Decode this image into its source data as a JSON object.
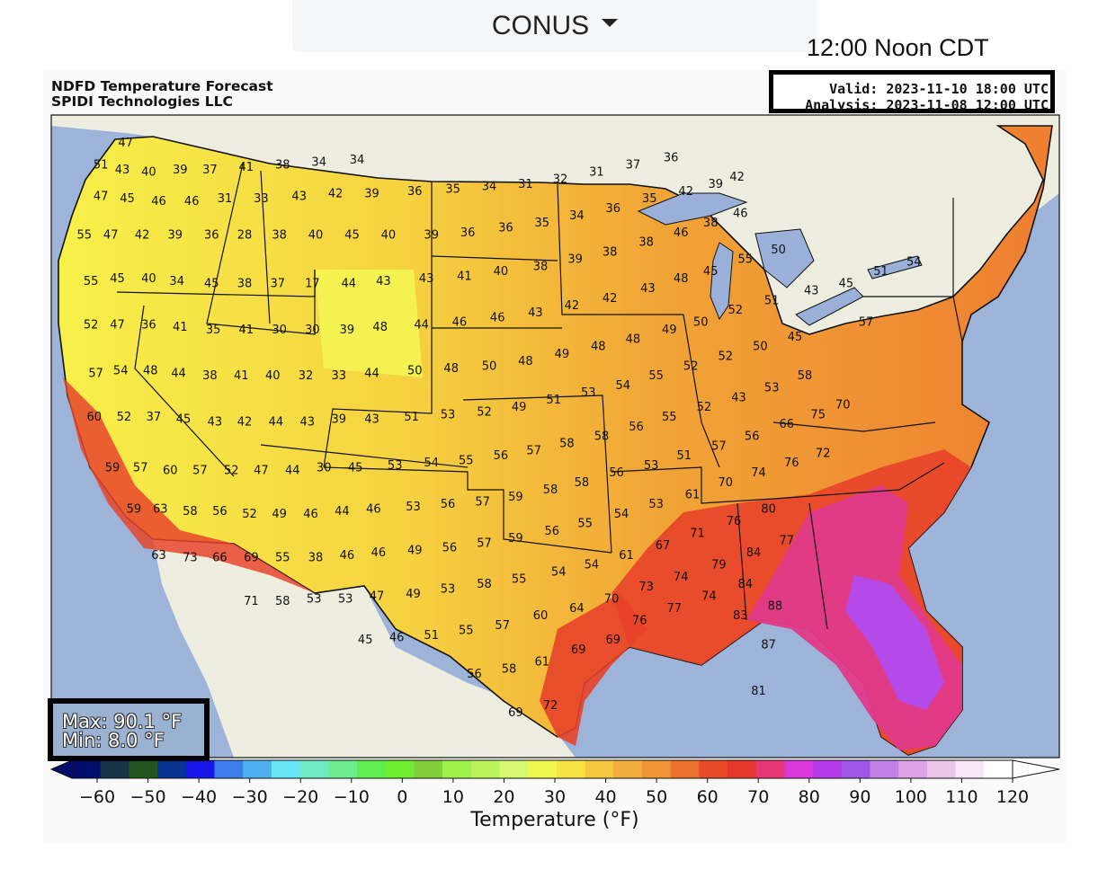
{
  "header": {
    "region_select": "CONUS",
    "local_time": "12:00 Noon CDT"
  },
  "map": {
    "title_line1": "NDFD Temperature Forecast",
    "title_line2": "SPIDI Technologies LLC",
    "valid": "Valid: 2023-11-10 18:00 UTC",
    "analysis": "Analysis: 2023-11-08 12:00 UTC",
    "max": "Max: 90.1 °F",
    "min": "Min: 8.0 °F"
  },
  "colors": {
    "ocean": "#9db3d8",
    "land_outside": "#eeeee0",
    "border": "#111111",
    "lake": "#9ab0d8"
  },
  "temperature_labels": [
    {
      "t": "47",
      "lon": -122.5,
      "lat": 48.7
    },
    {
      "t": "51",
      "lon": -124.0,
      "lat": 47.8
    },
    {
      "t": "43",
      "lon": -122.7,
      "lat": 47.6
    },
    {
      "t": "40",
      "lon": -121.1,
      "lat": 47.5
    },
    {
      "t": "39",
      "lon": -119.2,
      "lat": 47.6
    },
    {
      "t": "37",
      "lon": -117.4,
      "lat": 47.6
    },
    {
      "t": "41",
      "lon": -115.2,
      "lat": 47.7
    },
    {
      "t": "38",
      "lon": -113.0,
      "lat": 47.8
    },
    {
      "t": "34",
      "lon": -110.8,
      "lat": 47.9
    },
    {
      "t": "34",
      "lon": -108.5,
      "lat": 48.0
    },
    {
      "t": "47",
      "lon": -124.0,
      "lat": 46.5
    },
    {
      "t": "45",
      "lon": -122.4,
      "lat": 46.4
    },
    {
      "t": "46",
      "lon": -120.5,
      "lat": 46.3
    },
    {
      "t": "46",
      "lon": -118.5,
      "lat": 46.3
    },
    {
      "t": "31",
      "lon": -116.5,
      "lat": 46.4
    },
    {
      "t": "33",
      "lon": -114.3,
      "lat": 46.4
    },
    {
      "t": "43",
      "lon": -112.0,
      "lat": 46.5
    },
    {
      "t": "42",
      "lon": -109.8,
      "lat": 46.6
    },
    {
      "t": "39",
      "lon": -107.6,
      "lat": 46.6
    },
    {
      "t": "36",
      "lon": -105.0,
      "lat": 46.7
    },
    {
      "t": "35",
      "lon": -102.7,
      "lat": 46.8
    },
    {
      "t": "34",
      "lon": -100.5,
      "lat": 46.9
    },
    {
      "t": "31",
      "lon": -98.3,
      "lat": 47.0
    },
    {
      "t": "32",
      "lon": -96.2,
      "lat": 47.2
    },
    {
      "t": "31",
      "lon": -94.0,
      "lat": 47.5
    },
    {
      "t": "37",
      "lon": -91.8,
      "lat": 47.8
    },
    {
      "t": "36",
      "lon": -89.5,
      "lat": 48.1
    },
    {
      "t": "55",
      "lon": -125.0,
      "lat": 44.9
    },
    {
      "t": "47",
      "lon": -123.4,
      "lat": 44.9
    },
    {
      "t": "42",
      "lon": -121.5,
      "lat": 44.9
    },
    {
      "t": "39",
      "lon": -119.5,
      "lat": 44.9
    },
    {
      "t": "36",
      "lon": -117.3,
      "lat": 44.9
    },
    {
      "t": "28",
      "lon": -115.3,
      "lat": 44.9
    },
    {
      "t": "38",
      "lon": -113.2,
      "lat": 44.9
    },
    {
      "t": "40",
      "lon": -111.0,
      "lat": 44.9
    },
    {
      "t": "45",
      "lon": -108.8,
      "lat": 44.9
    },
    {
      "t": "40",
      "lon": -106.6,
      "lat": 44.9
    },
    {
      "t": "39",
      "lon": -104.0,
      "lat": 44.9
    },
    {
      "t": "36",
      "lon": -101.8,
      "lat": 45.0
    },
    {
      "t": "36",
      "lon": -99.5,
      "lat": 45.2
    },
    {
      "t": "35",
      "lon": -97.3,
      "lat": 45.4
    },
    {
      "t": "34",
      "lon": -95.2,
      "lat": 45.7
    },
    {
      "t": "36",
      "lon": -93.0,
      "lat": 46.0
    },
    {
      "t": "35",
      "lon": -90.8,
      "lat": 46.4
    },
    {
      "t": "42",
      "lon": -88.6,
      "lat": 46.7
    },
    {
      "t": "39",
      "lon": -86.8,
      "lat": 47.0
    },
    {
      "t": "42",
      "lon": -85.5,
      "lat": 47.3
    },
    {
      "t": "55",
      "lon": -124.6,
      "lat": 43.0
    },
    {
      "t": "45",
      "lon": -123.0,
      "lat": 43.1
    },
    {
      "t": "40",
      "lon": -121.1,
      "lat": 43.1
    },
    {
      "t": "34",
      "lon": -119.4,
      "lat": 43.0
    },
    {
      "t": "45",
      "lon": -117.3,
      "lat": 42.9
    },
    {
      "t": "38",
      "lon": -115.3,
      "lat": 42.9
    },
    {
      "t": "37",
      "lon": -113.3,
      "lat": 42.9
    },
    {
      "t": "17",
      "lon": -111.2,
      "lat": 42.9
    },
    {
      "t": "44",
      "lon": -109.0,
      "lat": 42.9
    },
    {
      "t": "43",
      "lon": -106.9,
      "lat": 43.0
    },
    {
      "t": "43",
      "lon": -104.3,
      "lat": 43.1
    },
    {
      "t": "41",
      "lon": -102.0,
      "lat": 43.2
    },
    {
      "t": "40",
      "lon": -99.8,
      "lat": 43.4
    },
    {
      "t": "38",
      "lon": -97.4,
      "lat": 43.6
    },
    {
      "t": "39",
      "lon": -95.3,
      "lat": 43.9
    },
    {
      "t": "38",
      "lon": -93.2,
      "lat": 44.2
    },
    {
      "t": "38",
      "lon": -91.0,
      "lat": 44.6
    },
    {
      "t": "46",
      "lon": -88.9,
      "lat": 45.0
    },
    {
      "t": "38",
      "lon": -87.1,
      "lat": 45.4
    },
    {
      "t": "46",
      "lon": -85.3,
      "lat": 45.8
    },
    {
      "t": "52",
      "lon": -124.6,
      "lat": 41.2
    },
    {
      "t": "47",
      "lon": -123.0,
      "lat": 41.2
    },
    {
      "t": "36",
      "lon": -121.1,
      "lat": 41.2
    },
    {
      "t": "41",
      "lon": -119.2,
      "lat": 41.1
    },
    {
      "t": "35",
      "lon": -117.2,
      "lat": 41.0
    },
    {
      "t": "41",
      "lon": -115.2,
      "lat": 41.0
    },
    {
      "t": "30",
      "lon": -113.2,
      "lat": 41.0
    },
    {
      "t": "30",
      "lon": -111.2,
      "lat": 41.0
    },
    {
      "t": "39",
      "lon": -109.1,
      "lat": 41.0
    },
    {
      "t": "48",
      "lon": -107.1,
      "lat": 41.1
    },
    {
      "t": "44",
      "lon": -104.6,
      "lat": 41.2
    },
    {
      "t": "46",
      "lon": -102.3,
      "lat": 41.3
    },
    {
      "t": "46",
      "lon": -100.0,
      "lat": 41.5
    },
    {
      "t": "43",
      "lon": -97.7,
      "lat": 41.7
    },
    {
      "t": "42",
      "lon": -95.5,
      "lat": 42.0
    },
    {
      "t": "42",
      "lon": -93.2,
      "lat": 42.3
    },
    {
      "t": "43",
      "lon": -90.9,
      "lat": 42.7
    },
    {
      "t": "48",
      "lon": -88.9,
      "lat": 43.1
    },
    {
      "t": "45",
      "lon": -87.1,
      "lat": 43.4
    },
    {
      "t": "55",
      "lon": -85.0,
      "lat": 43.9
    },
    {
      "t": "50",
      "lon": -83.0,
      "lat": 44.3
    },
    {
      "t": "57",
      "lon": -124.3,
      "lat": 39.2
    },
    {
      "t": "54",
      "lon": -122.8,
      "lat": 39.3
    },
    {
      "t": "48",
      "lon": -121.0,
      "lat": 39.3
    },
    {
      "t": "44",
      "lon": -119.3,
      "lat": 39.2
    },
    {
      "t": "38",
      "lon": -117.4,
      "lat": 39.1
    },
    {
      "t": "41",
      "lon": -115.5,
      "lat": 39.1
    },
    {
      "t": "40",
      "lon": -113.6,
      "lat": 39.1
    },
    {
      "t": "32",
      "lon": -111.6,
      "lat": 39.1
    },
    {
      "t": "33",
      "lon": -109.6,
      "lat": 39.1
    },
    {
      "t": "44",
      "lon": -107.6,
      "lat": 39.2
    },
    {
      "t": "50",
      "lon": -105.0,
      "lat": 39.3
    },
    {
      "t": "48",
      "lon": -102.8,
      "lat": 39.4
    },
    {
      "t": "50",
      "lon": -100.5,
      "lat": 39.5
    },
    {
      "t": "48",
      "lon": -98.3,
      "lat": 39.7
    },
    {
      "t": "49",
      "lon": -96.1,
      "lat": 40.0
    },
    {
      "t": "48",
      "lon": -93.9,
      "lat": 40.3
    },
    {
      "t": "48",
      "lon": -91.8,
      "lat": 40.6
    },
    {
      "t": "49",
      "lon": -89.6,
      "lat": 41.0
    },
    {
      "t": "50",
      "lon": -87.7,
      "lat": 41.3
    },
    {
      "t": "52",
      "lon": -85.6,
      "lat": 41.8
    },
    {
      "t": "51",
      "lon": -83.4,
      "lat": 42.2
    },
    {
      "t": "43",
      "lon": -81.0,
      "lat": 42.6
    },
    {
      "t": "45",
      "lon": -78.9,
      "lat": 42.9
    },
    {
      "t": "51",
      "lon": -76.8,
      "lat": 43.4
    },
    {
      "t": "54",
      "lon": -74.8,
      "lat": 43.8
    },
    {
      "t": "60",
      "lon": -124.4,
      "lat": 37.4
    },
    {
      "t": "52",
      "lon": -122.6,
      "lat": 37.4
    },
    {
      "t": "37",
      "lon": -120.8,
      "lat": 37.4
    },
    {
      "t": "45",
      "lon": -119.0,
      "lat": 37.3
    },
    {
      "t": "43",
      "lon": -117.1,
      "lat": 37.2
    },
    {
      "t": "42",
      "lon": -115.3,
      "lat": 37.2
    },
    {
      "t": "44",
      "lon": -113.4,
      "lat": 37.2
    },
    {
      "t": "43",
      "lon": -111.5,
      "lat": 37.2
    },
    {
      "t": "39",
      "lon": -109.6,
      "lat": 37.3
    },
    {
      "t": "43",
      "lon": -107.6,
      "lat": 37.3
    },
    {
      "t": "51",
      "lon": -105.2,
      "lat": 37.4
    },
    {
      "t": "53",
      "lon": -103.0,
      "lat": 37.5
    },
    {
      "t": "52",
      "lon": -100.8,
      "lat": 37.6
    },
    {
      "t": "49",
      "lon": -98.7,
      "lat": 37.8
    },
    {
      "t": "51",
      "lon": -96.6,
      "lat": 38.1
    },
    {
      "t": "53",
      "lon": -94.5,
      "lat": 38.4
    },
    {
      "t": "54",
      "lon": -92.4,
      "lat": 38.7
    },
    {
      "t": "55",
      "lon": -90.4,
      "lat": 39.1
    },
    {
      "t": "52",
      "lon": -88.3,
      "lat": 39.5
    },
    {
      "t": "52",
      "lon": -86.2,
      "lat": 39.9
    },
    {
      "t": "50",
      "lon": -84.1,
      "lat": 40.3
    },
    {
      "t": "45",
      "lon": -82.0,
      "lat": 40.7
    },
    {
      "t": "57",
      "lon": -77.7,
      "lat": 41.3
    },
    {
      "t": "59",
      "lon": -123.3,
      "lat": 35.3
    },
    {
      "t": "57",
      "lon": -121.6,
      "lat": 35.3
    },
    {
      "t": "60",
      "lon": -119.8,
      "lat": 35.2
    },
    {
      "t": "57",
      "lon": -118.0,
      "lat": 35.2
    },
    {
      "t": "52",
      "lon": -116.1,
      "lat": 35.2
    },
    {
      "t": "47",
      "lon": -114.3,
      "lat": 35.2
    },
    {
      "t": "44",
      "lon": -112.4,
      "lat": 35.2
    },
    {
      "t": "30",
      "lon": -110.5,
      "lat": 35.3
    },
    {
      "t": "45",
      "lon": -108.6,
      "lat": 35.3
    },
    {
      "t": "53",
      "lon": -106.2,
      "lat": 35.4
    },
    {
      "t": "54",
      "lon": -104.0,
      "lat": 35.5
    },
    {
      "t": "55",
      "lon": -101.9,
      "lat": 35.6
    },
    {
      "t": "56",
      "lon": -99.8,
      "lat": 35.8
    },
    {
      "t": "57",
      "lon": -97.8,
      "lat": 36.0
    },
    {
      "t": "58",
      "lon": -95.8,
      "lat": 36.3
    },
    {
      "t": "58",
      "lon": -93.7,
      "lat": 36.6
    },
    {
      "t": "56",
      "lon": -91.6,
      "lat": 37.0
    },
    {
      "t": "55",
      "lon": -89.6,
      "lat": 37.4
    },
    {
      "t": "52",
      "lon": -87.5,
      "lat": 37.8
    },
    {
      "t": "43",
      "lon": -85.4,
      "lat": 38.2
    },
    {
      "t": "53",
      "lon": -83.4,
      "lat": 38.6
    },
    {
      "t": "58",
      "lon": -81.4,
      "lat": 39.1
    },
    {
      "t": "59",
      "lon": -122.0,
      "lat": 33.6
    },
    {
      "t": "63",
      "lon": -120.4,
      "lat": 33.6
    },
    {
      "t": "58",
      "lon": -118.6,
      "lat": 33.5
    },
    {
      "t": "56",
      "lon": -116.8,
      "lat": 33.5
    },
    {
      "t": "52",
      "lon": -115.0,
      "lat": 33.4
    },
    {
      "t": "49",
      "lon": -113.2,
      "lat": 33.4
    },
    {
      "t": "46",
      "lon": -111.3,
      "lat": 33.4
    },
    {
      "t": "44",
      "lon": -109.4,
      "lat": 33.5
    },
    {
      "t": "46",
      "lon": -107.5,
      "lat": 33.6
    },
    {
      "t": "53",
      "lon": -105.1,
      "lat": 33.7
    },
    {
      "t": "56",
      "lon": -103.0,
      "lat": 33.8
    },
    {
      "t": "57",
      "lon": -100.9,
      "lat": 33.9
    },
    {
      "t": "59",
      "lon": -98.9,
      "lat": 34.1
    },
    {
      "t": "58",
      "lon": -96.8,
      "lat": 34.4
    },
    {
      "t": "58",
      "lon": -94.9,
      "lat": 34.7
    },
    {
      "t": "56",
      "lon": -92.8,
      "lat": 35.1
    },
    {
      "t": "53",
      "lon": -90.7,
      "lat": 35.4
    },
    {
      "t": "51",
      "lon": -88.7,
      "lat": 35.8
    },
    {
      "t": "57",
      "lon": -86.6,
      "lat": 36.2
    },
    {
      "t": "56",
      "lon": -84.6,
      "lat": 36.6
    },
    {
      "t": "66",
      "lon": -82.5,
      "lat": 37.1
    },
    {
      "t": "75",
      "lon": -80.6,
      "lat": 37.5
    },
    {
      "t": "70",
      "lon": -79.1,
      "lat": 37.9
    },
    {
      "t": "63",
      "lon": -120.5,
      "lat": 31.7
    },
    {
      "t": "73",
      "lon": -118.6,
      "lat": 31.6
    },
    {
      "t": "66",
      "lon": -116.8,
      "lat": 31.6
    },
    {
      "t": "69",
      "lon": -114.9,
      "lat": 31.6
    },
    {
      "t": "55",
      "lon": -113.0,
      "lat": 31.6
    },
    {
      "t": "38",
      "lon": -111.0,
      "lat": 31.6
    },
    {
      "t": "46",
      "lon": -109.1,
      "lat": 31.7
    },
    {
      "t": "46",
      "lon": -107.2,
      "lat": 31.8
    },
    {
      "t": "49",
      "lon": -105.0,
      "lat": 31.9
    },
    {
      "t": "56",
      "lon": -102.9,
      "lat": 32.0
    },
    {
      "t": "57",
      "lon": -100.8,
      "lat": 32.2
    },
    {
      "t": "59",
      "lon": -98.9,
      "lat": 32.4
    },
    {
      "t": "56",
      "lon": -96.7,
      "lat": 32.7
    },
    {
      "t": "55",
      "lon": -94.7,
      "lat": 33.0
    },
    {
      "t": "54",
      "lon": -92.5,
      "lat": 33.4
    },
    {
      "t": "53",
      "lon": -90.4,
      "lat": 33.8
    },
    {
      "t": "61",
      "lon": -88.2,
      "lat": 34.2
    },
    {
      "t": "70",
      "lon": -86.2,
      "lat": 34.7
    },
    {
      "t": "74",
      "lon": -84.2,
      "lat": 35.1
    },
    {
      "t": "76",
      "lon": -82.2,
      "lat": 35.5
    },
    {
      "t": "72",
      "lon": -80.3,
      "lat": 35.9
    },
    {
      "t": "71",
      "lon": -114.9,
      "lat": 29.8
    },
    {
      "t": "58",
      "lon": -113.0,
      "lat": 29.8
    },
    {
      "t": "53",
      "lon": -111.1,
      "lat": 29.9
    },
    {
      "t": "53",
      "lon": -109.2,
      "lat": 29.9
    },
    {
      "t": "47",
      "lon": -107.3,
      "lat": 30.0
    },
    {
      "t": "49",
      "lon": -105.1,
      "lat": 30.1
    },
    {
      "t": "53",
      "lon": -103.0,
      "lat": 30.3
    },
    {
      "t": "58",
      "lon": -100.8,
      "lat": 30.5
    },
    {
      "t": "55",
      "lon": -98.7,
      "lat": 30.7
    },
    {
      "t": "54",
      "lon": -96.3,
      "lat": 31.0
    },
    {
      "t": "54",
      "lon": -94.3,
      "lat": 31.3
    },
    {
      "t": "61",
      "lon": -92.2,
      "lat": 31.7
    },
    {
      "t": "67",
      "lon": -90.0,
      "lat": 32.1
    },
    {
      "t": "71",
      "lon": -87.9,
      "lat": 32.6
    },
    {
      "t": "76",
      "lon": -85.7,
      "lat": 33.1
    },
    {
      "t": "80",
      "lon": -83.6,
      "lat": 33.6
    },
    {
      "t": "45",
      "lon": -108.0,
      "lat": 28.2
    },
    {
      "t": "46",
      "lon": -106.1,
      "lat": 28.3
    },
    {
      "t": "51",
      "lon": -104.0,
      "lat": 28.4
    },
    {
      "t": "55",
      "lon": -101.9,
      "lat": 28.6
    },
    {
      "t": "57",
      "lon": -99.7,
      "lat": 28.8
    },
    {
      "t": "60",
      "lon": -97.4,
      "lat": 29.2
    },
    {
      "t": "64",
      "lon": -95.2,
      "lat": 29.5
    },
    {
      "t": "70",
      "lon": -93.1,
      "lat": 29.9
    },
    {
      "t": "73",
      "lon": -91.0,
      "lat": 30.4
    },
    {
      "t": "74",
      "lon": -88.9,
      "lat": 30.8
    },
    {
      "t": "79",
      "lon": -86.6,
      "lat": 31.3
    },
    {
      "t": "84",
      "lon": -84.5,
      "lat": 31.8
    },
    {
      "t": "77",
      "lon": -82.5,
      "lat": 32.3
    },
    {
      "t": "76",
      "lon": -91.4,
      "lat": 29.0
    },
    {
      "t": "77",
      "lon": -89.3,
      "lat": 29.5
    },
    {
      "t": "74",
      "lon": -87.2,
      "lat": 30.0
    },
    {
      "t": "84",
      "lon": -85.0,
      "lat": 30.5
    },
    {
      "t": "56",
      "lon": -101.4,
      "lat": 26.8
    },
    {
      "t": "58",
      "lon": -99.3,
      "lat": 27.0
    },
    {
      "t": "61",
      "lon": -97.3,
      "lat": 27.3
    },
    {
      "t": "69",
      "lon": -95.1,
      "lat": 27.8
    },
    {
      "t": "69",
      "lon": -93.0,
      "lat": 28.2
    },
    {
      "t": "83",
      "lon": -85.3,
      "lat": 29.2
    },
    {
      "t": "88",
      "lon": -83.2,
      "lat": 29.6
    },
    {
      "t": "69",
      "lon": -98.9,
      "lat": 25.2
    },
    {
      "t": "72",
      "lon": -96.8,
      "lat": 25.5
    },
    {
      "t": "87",
      "lon": -83.6,
      "lat": 28.0
    },
    {
      "t": "81",
      "lon": -84.2,
      "lat": 26.1
    }
  ],
  "colorbar": {
    "ticks": [
      "−60",
      "−50",
      "−40",
      "−30",
      "−20",
      "−10",
      "0",
      "10",
      "20",
      "30",
      "40",
      "50",
      "60",
      "70",
      "80",
      "90",
      "100",
      "110",
      "120"
    ],
    "label": "Temperature (°F)",
    "colors": [
      "#000c6e",
      "#183348",
      "#22551f",
      "#093393",
      "#1717ea",
      "#3c7fec",
      "#4fb0ef",
      "#66e4f4",
      "#6de9c4",
      "#6cec8f",
      "#60ed50",
      "#70ee30",
      "#84ce3c",
      "#9ef24a",
      "#b9f45d",
      "#d6f76f",
      "#f0f74d",
      "#f5e444",
      "#f5c840",
      "#f4ae3c",
      "#f09534",
      "#ec712e",
      "#e84a2a",
      "#e6352a",
      "#e63677",
      "#da37de",
      "#b53ce8",
      "#a057e8",
      "#c281e8",
      "#dda1e8",
      "#ebc4ea",
      "#f7e6f6",
      "#ffffff"
    ]
  },
  "annotations": {
    "corner_labels": [
      "84",
      "83",
      "88",
      "87",
      "81"
    ]
  }
}
